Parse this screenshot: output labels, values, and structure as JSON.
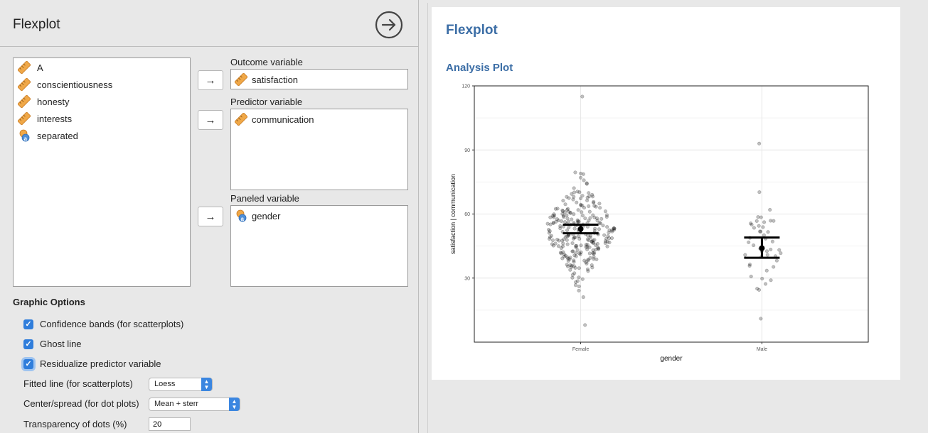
{
  "app": {
    "panel_title": "Flexplot",
    "run_icon": "arrow-right-circle-icon"
  },
  "variables": {
    "available": [
      {
        "name": "A",
        "type": "scale"
      },
      {
        "name": "conscientiousness",
        "type": "scale"
      },
      {
        "name": "honesty",
        "type": "scale"
      },
      {
        "name": "interests",
        "type": "scale"
      },
      {
        "name": "separated",
        "type": "nominal"
      }
    ],
    "outcome": {
      "label": "Outcome variable",
      "value": "satisfaction",
      "type": "scale"
    },
    "predictor": {
      "label": "Predictor variable",
      "value": "communication",
      "type": "scale"
    },
    "paneled": {
      "label": "Paneled variable",
      "value": "gender",
      "type": "nominal"
    },
    "arrow_glyph": "→"
  },
  "graphic_options": {
    "title": "Graphic Options",
    "checkboxes": [
      {
        "label": "Confidence bands (for scatterplots)",
        "checked": true
      },
      {
        "label": "Ghost line",
        "checked": true
      },
      {
        "label": "Residualize predictor variable",
        "checked": true
      }
    ],
    "fitted_line": {
      "label": "Fitted line (for scatterplots)",
      "value": "Loess"
    },
    "center_spread": {
      "label": "Center/spread (for dot plots)",
      "value": "Mean + sterr"
    },
    "transparency": {
      "label": "Transparency of dots (%)",
      "value": "20"
    }
  },
  "output": {
    "title": "Flexplot",
    "subtitle": "Analysis Plot"
  },
  "colors": {
    "heading_blue": "#3c6ea6",
    "checkbox_blue": "#2f7ddb",
    "scale_icon": "#f0a848",
    "nominal_icon": "#4f8fd8"
  },
  "chart_data": {
    "type": "scatter",
    "xlabel": "gender",
    "ylabel": "satisfaction | communication",
    "categories": [
      "Female",
      "Male"
    ],
    "ylim": [
      0,
      120
    ],
    "yticks": [
      30,
      60,
      90,
      120
    ],
    "grid": true,
    "summary": [
      {
        "category": "Female",
        "mean": 53,
        "lower": 51,
        "upper": 55
      },
      {
        "category": "Male",
        "mean": 44,
        "lower": 39.5,
        "upper": 49
      }
    ],
    "point_counts": {
      "Female": 260,
      "Male": 45
    },
    "point_ranges": {
      "Female": [
        8,
        115
      ],
      "Male": [
        11,
        93
      ]
    },
    "point_alpha": 0.2
  }
}
